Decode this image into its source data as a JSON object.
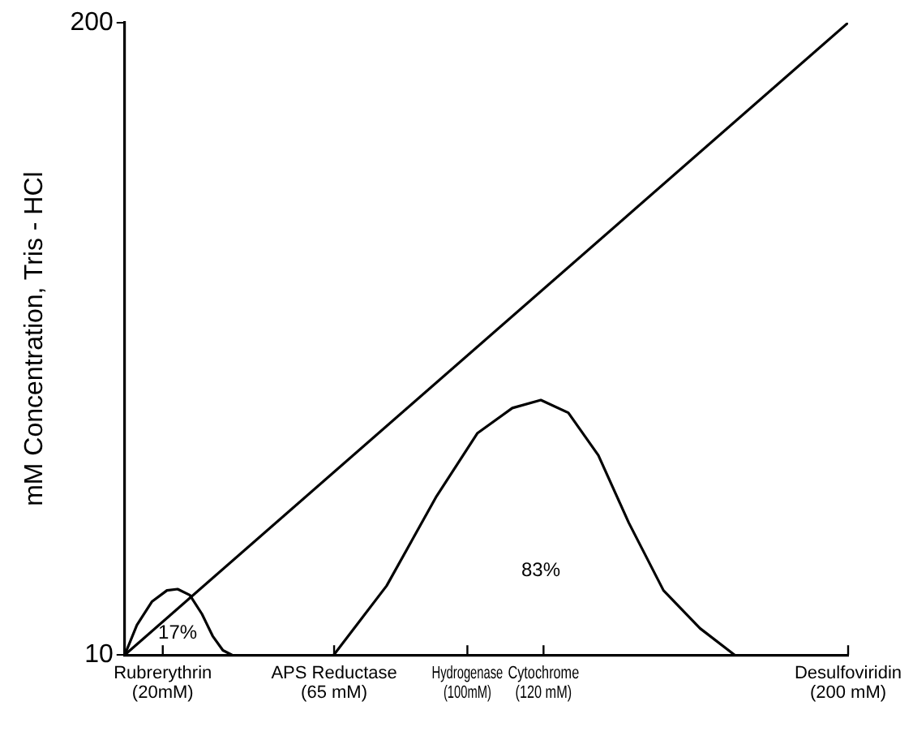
{
  "chart_data": {
    "type": "line",
    "ylabel": "mM Concentration, Tris - HCl",
    "xlim": [
      10,
      200
    ],
    "xticks": [
      {
        "value": 20,
        "label": "Rubrerythrin (20mM)"
      },
      {
        "value": 65,
        "label": "APS Reductase (65 mM)"
      },
      {
        "value": 100,
        "label": "Hydrogenase (100mM)"
      },
      {
        "value": 120,
        "label": "Cytochrome (120 mM)"
      },
      {
        "value": 200,
        "label": "Desulfoviridin (200 mM)"
      }
    ],
    "ylim": [
      10,
      200
    ],
    "yticks": [
      10,
      200
    ],
    "series": [
      {
        "color": "#000000",
        "x": [
          10,
          200
        ],
        "values": [
          10,
          200
        ]
      },
      {
        "color": "#000000",
        "x": [
          10,
          13.2,
          17.2,
          21.1,
          23.9,
          27.1,
          30.3,
          33.1,
          35.8,
          38.2
        ],
        "values": [
          10,
          19,
          26.1,
          29.4,
          29.8,
          28,
          22.3,
          15.7,
          11.4,
          10
        ]
      },
      {
        "color": "#000000",
        "x": [
          64.9,
          78.8,
          91.9,
          102.6,
          111.8,
          119.3,
          126.5,
          134.4,
          142.4,
          151.5,
          161.1,
          170.2
        ],
        "values": [
          10,
          30.8,
          57.7,
          76.6,
          84.2,
          86.6,
          82.8,
          70,
          49.7,
          29.4,
          18,
          10
        ]
      }
    ],
    "annotations": [
      "17%",
      "83%"
    ],
    "grid": false,
    "legend": false,
    "marker": "none",
    "line_style": "solid"
  }
}
